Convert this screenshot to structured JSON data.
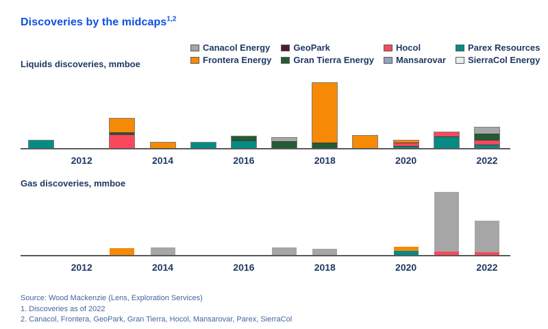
{
  "title": {
    "text": "Discoveries by the midcaps",
    "superscript": "1,2"
  },
  "colors": {
    "title_text": "#0b50e0",
    "heading_text": "#1f3864",
    "axis_line": "#595959",
    "footer_text": "#44639f",
    "series": {
      "Canacol Energy": "#a6a6a6",
      "Frontera Energy": "#f68a06",
      "GeoPark": "#4f1a3a",
      "Gran Tierra Energy": "#215c33",
      "Hocol": "#f9485c",
      "Mansarovar": "#8fa3c0",
      "Parex Resources": "#048c84",
      "SierraCol Energy": "#e9edf1"
    }
  },
  "legend": {
    "items": [
      "Canacol Energy",
      "Frontera Energy",
      "GeoPark",
      "Gran Tierra Energy",
      "Hocol",
      "Mansarovar",
      "Parex Resources",
      "SierraCol Energy"
    ]
  },
  "chart_data": [
    {
      "type": "bar",
      "stacked": true,
      "title": "Liquids discoveries, mmboe",
      "unit": "mmboe",
      "xlabel": "",
      "ylabel": "",
      "grid": false,
      "legend_position": "top",
      "x": [
        2011,
        2012,
        2013,
        2014,
        2015,
        2016,
        2017,
        2018,
        2019,
        2020,
        2021,
        2022
      ],
      "x_tick_labels": [
        "2012",
        "2014",
        "2016",
        "2018",
        "2020",
        "2022"
      ],
      "ylim": [
        0,
        105
      ],
      "stack_order_bottom_to_top": [
        "SierraCol Energy",
        "Parex Resources",
        "Mansarovar",
        "Hocol",
        "Gran Tierra Energy",
        "GeoPark",
        "Frontera Energy",
        "Canacol Energy"
      ],
      "series": [
        {
          "name": "Canacol Energy",
          "values": [
            0,
            0,
            0,
            0,
            0,
            0,
            5,
            0,
            0,
            0,
            0,
            10
          ]
        },
        {
          "name": "Frontera Energy",
          "values": [
            0,
            0,
            21,
            8,
            0,
            0,
            0,
            92,
            19,
            3,
            0,
            0
          ]
        },
        {
          "name": "GeoPark",
          "values": [
            0,
            0,
            0,
            0,
            0,
            0,
            0,
            0,
            0,
            0,
            0,
            0
          ]
        },
        {
          "name": "Gran Tierra Energy",
          "values": [
            0,
            0,
            3,
            0,
            0,
            6,
            11,
            8,
            0,
            0,
            0,
            9
          ]
        },
        {
          "name": "Hocol",
          "values": [
            0,
            0,
            21,
            0,
            0,
            0,
            0,
            0,
            0,
            5,
            6,
            8
          ]
        },
        {
          "name": "Mansarovar",
          "values": [
            0,
            0,
            0,
            0,
            0,
            0,
            0,
            0,
            0,
            0,
            0,
            0
          ]
        },
        {
          "name": "Parex Resources",
          "values": [
            12,
            0,
            0,
            0,
            8,
            12,
            0,
            0,
            0,
            3,
            18,
            5
          ]
        },
        {
          "name": "SierraCol Energy",
          "values": [
            0,
            0,
            0,
            0,
            0,
            0,
            0,
            0,
            0,
            0,
            0,
            0
          ]
        }
      ]
    },
    {
      "type": "bar",
      "stacked": true,
      "title": "Gas discoveries, mmboe",
      "unit": "mmboe",
      "xlabel": "",
      "ylabel": "",
      "grid": false,
      "legend_position": "top",
      "x": [
        2011,
        2012,
        2013,
        2014,
        2015,
        2016,
        2017,
        2018,
        2019,
        2020,
        2021,
        2022
      ],
      "x_tick_labels": [
        "2012",
        "2014",
        "2016",
        "2018",
        "2020",
        "2022"
      ],
      "ylim": [
        0,
        105
      ],
      "stack_order_bottom_to_top": [
        "SierraCol Energy",
        "Parex Resources",
        "Mansarovar",
        "Hocol",
        "Gran Tierra Energy",
        "GeoPark",
        "Frontera Energy",
        "Canacol Energy"
      ],
      "series": [
        {
          "name": "Canacol Energy",
          "values": [
            0,
            0,
            0,
            12,
            0,
            0,
            12,
            10,
            0,
            0,
            94,
            50
          ]
        },
        {
          "name": "Frontera Energy",
          "values": [
            0,
            0,
            11,
            0,
            0,
            0,
            0,
            0,
            0,
            7,
            0,
            0
          ]
        },
        {
          "name": "GeoPark",
          "values": [
            0,
            0,
            0,
            0,
            0,
            0,
            0,
            0,
            0,
            0,
            0,
            0
          ]
        },
        {
          "name": "Gran Tierra Energy",
          "values": [
            0,
            0,
            0,
            0,
            0,
            0,
            0,
            0,
            0,
            0,
            0,
            0
          ]
        },
        {
          "name": "Hocol",
          "values": [
            0,
            0,
            0,
            0,
            0,
            0,
            0,
            0,
            0,
            0,
            5,
            4
          ]
        },
        {
          "name": "Mansarovar",
          "values": [
            0,
            0,
            0,
            0,
            0,
            0,
            0,
            0,
            0,
            0,
            0,
            0
          ]
        },
        {
          "name": "Parex Resources",
          "values": [
            0,
            0,
            0,
            0,
            0,
            0,
            0,
            0,
            0,
            6,
            0,
            0
          ]
        },
        {
          "name": "SierraCol Energy",
          "values": [
            0,
            0,
            0,
            0,
            0,
            0,
            0,
            0,
            0,
            0,
            0,
            0
          ]
        }
      ]
    }
  ],
  "footer": {
    "source": "Source: Wood Mackenzie (Lens, Exploration Services)",
    "note1": "1. Discoveries as of 2022",
    "note2": "2. Canacol, Frontera, GeoPark, Gran Tierra, Hocol, Mansarovar, Parex, SierraCol"
  }
}
